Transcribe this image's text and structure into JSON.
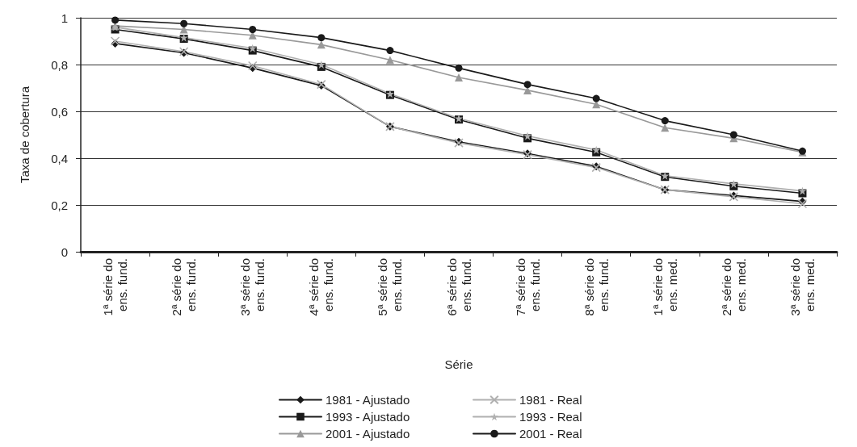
{
  "chart_data": {
    "type": "line",
    "xlabel": "Série",
    "ylabel": "Taxa de cobertura",
    "categories": [
      "1ª série do\nens. fund.",
      "2ª série do\nens. fund.",
      "3ª série do\nens. fund.",
      "4ª série do\nens. fund.",
      "5ª série do\nens. fund.",
      "6ª série do\nens. fund.",
      "7ª série do\nens. fund.",
      "8ª série do\nens. fund.",
      "1ª série do\nens. med.",
      "2ª série do\nens. med.",
      "3ª série do\nens. med."
    ],
    "series": [
      {
        "name": "1981 - Ajustado",
        "color": "#1a1a1a",
        "marker": "diamond",
        "values": [
          0.89,
          0.85,
          0.785,
          0.71,
          0.535,
          0.47,
          0.42,
          0.365,
          0.265,
          0.24,
          0.215
        ]
      },
      {
        "name": "1993 - Ajustado",
        "color": "#1a1a1a",
        "marker": "square",
        "values": [
          0.95,
          0.91,
          0.86,
          0.79,
          0.67,
          0.565,
          0.485,
          0.425,
          0.32,
          0.28,
          0.25
        ]
      },
      {
        "name": "2001 - Ajustado",
        "color": "#999999",
        "marker": "triangle",
        "values": [
          0.965,
          0.95,
          0.925,
          0.885,
          0.82,
          0.745,
          0.69,
          0.63,
          0.53,
          0.485,
          0.425
        ]
      },
      {
        "name": "1981 - Real",
        "color": "#b0b0b0",
        "marker": "cross",
        "values": [
          0.9,
          0.855,
          0.795,
          0.715,
          0.535,
          0.465,
          0.415,
          0.36,
          0.265,
          0.235,
          0.205
        ]
      },
      {
        "name": "1993 - Real",
        "color": "#b0b0b0",
        "marker": "star",
        "values": [
          0.96,
          0.915,
          0.87,
          0.8,
          0.675,
          0.57,
          0.495,
          0.435,
          0.325,
          0.29,
          0.26
        ]
      },
      {
        "name": "2001 - Real",
        "color": "#1a1a1a",
        "marker": "circle",
        "values": [
          0.99,
          0.975,
          0.95,
          0.915,
          0.86,
          0.785,
          0.715,
          0.655,
          0.56,
          0.5,
          0.43
        ]
      }
    ],
    "ylim": [
      0,
      1
    ],
    "yticks": [
      0,
      {
        "value": 0.2,
        "label": "0,2"
      },
      {
        "value": 0.4,
        "label": "0,4"
      },
      {
        "value": 0.6,
        "label": "0,6"
      },
      {
        "value": 0.8,
        "label": "0,8"
      },
      1
    ],
    "grid": "y",
    "legend": "bottom",
    "line_style": "solid"
  }
}
